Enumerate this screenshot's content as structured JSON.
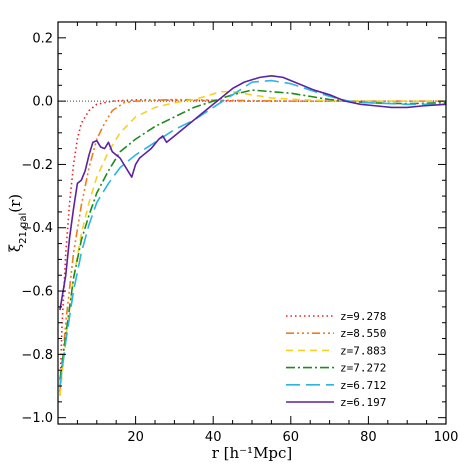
{
  "chart_data": {
    "type": "line",
    "xlabel": "r [h⁻¹Mpc]",
    "ylabel": "ξ",
    "ylabel_subscript": "21,gal",
    "ylabel_suffix": "(r)",
    "xlim": [
      0,
      100
    ],
    "ylim": [
      -1.02,
      0.25
    ],
    "x_ticks": [
      20,
      40,
      60,
      80,
      100
    ],
    "y_ticks": [
      -1.0,
      -0.8,
      -0.6,
      -0.4,
      -0.2,
      0.0,
      0.2
    ],
    "x_tick_labels": [
      "20",
      "40",
      "60",
      "80",
      "100"
    ],
    "y_tick_labels": [
      "−1.0",
      "−0.8",
      "−0.6",
      "−0.4",
      "−0.2",
      "0.0",
      "0.2"
    ],
    "reference_line": {
      "y": 0,
      "style": "dotted",
      "color": "#444444"
    },
    "legend_position": "bottom-right",
    "series": [
      {
        "name": "z=9.278",
        "color": "#e8231b",
        "dash": "1.5,3",
        "points": [
          [
            0.5,
            -0.93
          ],
          [
            1,
            -0.72
          ],
          [
            2,
            -0.48
          ],
          [
            3,
            -0.32
          ],
          [
            4,
            -0.2
          ],
          [
            5,
            -0.12
          ],
          [
            6,
            -0.07
          ],
          [
            8,
            -0.03
          ],
          [
            10,
            -0.01
          ],
          [
            14,
            0.0
          ],
          [
            20,
            0.004
          ],
          [
            30,
            0.003
          ],
          [
            50,
            0.0
          ],
          [
            70,
            0.0
          ],
          [
            100,
            0.0
          ]
        ]
      },
      {
        "name": "z=8.550",
        "color": "#f07d1d",
        "dash": "8,3,2,3,2,3,2,3",
        "points": [
          [
            0.5,
            -0.92
          ],
          [
            2,
            -0.7
          ],
          [
            4,
            -0.48
          ],
          [
            6,
            -0.33
          ],
          [
            8,
            -0.21
          ],
          [
            10,
            -0.12
          ],
          [
            12,
            -0.07
          ],
          [
            14,
            -0.03
          ],
          [
            17,
            -0.005
          ],
          [
            20,
            0.0
          ],
          [
            30,
            0.005
          ],
          [
            40,
            0.003
          ],
          [
            60,
            0.0
          ],
          [
            100,
            0.0
          ]
        ]
      },
      {
        "name": "z=7.883",
        "color": "#f5d222",
        "dash": "7,5",
        "points": [
          [
            0.5,
            -0.93
          ],
          [
            2,
            -0.75
          ],
          [
            4,
            -0.56
          ],
          [
            6,
            -0.42
          ],
          [
            8,
            -0.32
          ],
          [
            10,
            -0.24
          ],
          [
            13,
            -0.16
          ],
          [
            16,
            -0.1
          ],
          [
            20,
            -0.05
          ],
          [
            25,
            -0.02
          ],
          [
            30,
            -0.005
          ],
          [
            35,
            0.005
          ],
          [
            38,
            0.015
          ],
          [
            42,
            0.03
          ],
          [
            45,
            0.03
          ],
          [
            50,
            0.02
          ],
          [
            55,
            0.01
          ],
          [
            65,
            0.003
          ],
          [
            80,
            0.0
          ],
          [
            100,
            0.0
          ]
        ]
      },
      {
        "name": "z=7.272",
        "color": "#1f8a1c",
        "dash": "9,3,2,3",
        "points": [
          [
            0.5,
            -0.88
          ],
          [
            2,
            -0.74
          ],
          [
            4,
            -0.56
          ],
          [
            6,
            -0.44
          ],
          [
            8,
            -0.36
          ],
          [
            10,
            -0.29
          ],
          [
            13,
            -0.22
          ],
          [
            16,
            -0.16
          ],
          [
            20,
            -0.12
          ],
          [
            25,
            -0.08
          ],
          [
            30,
            -0.05
          ],
          [
            35,
            -0.02
          ],
          [
            40,
            0.0
          ],
          [
            45,
            0.02
          ],
          [
            50,
            0.035
          ],
          [
            55,
            0.03
          ],
          [
            60,
            0.025
          ],
          [
            65,
            0.015
          ],
          [
            70,
            0.005
          ],
          [
            75,
            0.0
          ],
          [
            80,
            -0.005
          ],
          [
            90,
            -0.008
          ],
          [
            100,
            -0.005
          ]
        ]
      },
      {
        "name": "z=6.712",
        "color": "#2cb5e3",
        "dash": "14,6",
        "points": [
          [
            0.5,
            -0.9
          ],
          [
            2,
            -0.76
          ],
          [
            4,
            -0.6
          ],
          [
            6,
            -0.48
          ],
          [
            8,
            -0.39
          ],
          [
            10,
            -0.32
          ],
          [
            13,
            -0.26
          ],
          [
            16,
            -0.21
          ],
          [
            20,
            -0.17
          ],
          [
            25,
            -0.13
          ],
          [
            30,
            -0.09
          ],
          [
            35,
            -0.06
          ],
          [
            40,
            -0.02
          ],
          [
            45,
            0.02
          ],
          [
            50,
            0.06
          ],
          [
            55,
            0.065
          ],
          [
            60,
            0.055
          ],
          [
            65,
            0.035
          ],
          [
            70,
            0.015
          ],
          [
            75,
            0.0
          ],
          [
            80,
            -0.005
          ],
          [
            90,
            -0.01
          ],
          [
            100,
            -0.01
          ]
        ]
      },
      {
        "name": "z=6.197",
        "color": "#5b22a3",
        "dash": "",
        "points": [
          [
            0.5,
            -0.66
          ],
          [
            2,
            -0.55
          ],
          [
            3,
            -0.43
          ],
          [
            4,
            -0.34
          ],
          [
            5,
            -0.26
          ],
          [
            6,
            -0.25
          ],
          [
            7,
            -0.22
          ],
          [
            8,
            -0.17
          ],
          [
            9,
            -0.13
          ],
          [
            10,
            -0.125
          ],
          [
            11,
            -0.145
          ],
          [
            12,
            -0.15
          ],
          [
            13,
            -0.13
          ],
          [
            14,
            -0.16
          ],
          [
            16,
            -0.18
          ],
          [
            18,
            -0.22
          ],
          [
            19,
            -0.24
          ],
          [
            20,
            -0.2
          ],
          [
            21,
            -0.18
          ],
          [
            22,
            -0.17
          ],
          [
            24,
            -0.15
          ],
          [
            26,
            -0.12
          ],
          [
            27,
            -0.11
          ],
          [
            28,
            -0.13
          ],
          [
            30,
            -0.11
          ],
          [
            32,
            -0.09
          ],
          [
            35,
            -0.06
          ],
          [
            38,
            -0.03
          ],
          [
            40,
            -0.01
          ],
          [
            42,
            0.01
          ],
          [
            45,
            0.04
          ],
          [
            48,
            0.06
          ],
          [
            52,
            0.075
          ],
          [
            55,
            0.08
          ],
          [
            58,
            0.075
          ],
          [
            62,
            0.055
          ],
          [
            66,
            0.035
          ],
          [
            70,
            0.02
          ],
          [
            74,
            0.0
          ],
          [
            78,
            -0.01
          ],
          [
            82,
            -0.015
          ],
          [
            86,
            -0.02
          ],
          [
            90,
            -0.02
          ],
          [
            94,
            -0.015
          ],
          [
            100,
            -0.01
          ]
        ]
      }
    ]
  }
}
